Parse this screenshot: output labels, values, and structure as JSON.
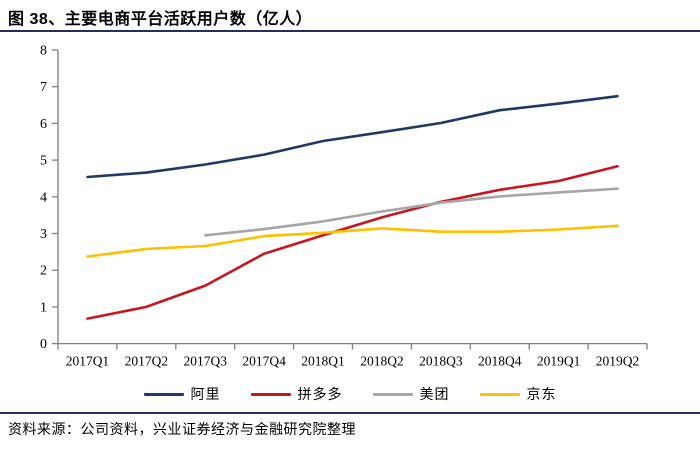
{
  "header": {
    "title": "图 38、主要电商平台活跃用户数（亿人）"
  },
  "footer": {
    "source": "资料来源：公司资料，兴业证券经济与金融研究院整理"
  },
  "colors": {
    "accent_rule": "#242D64",
    "axis": "#808080",
    "tick_text": "#000000"
  },
  "chart_data": {
    "type": "line",
    "title": "主要电商平台活跃用户数（亿人）",
    "unit": "亿人",
    "categories": [
      "2017Q1",
      "2017Q2",
      "2017Q3",
      "2017Q4",
      "2018Q1",
      "2018Q2",
      "2018Q3",
      "2018Q4",
      "2019Q1",
      "2019Q2"
    ],
    "series": [
      {
        "name": "阿里",
        "color": "#1F3864",
        "values": [
          4.54,
          4.66,
          4.88,
          5.15,
          5.52,
          5.76,
          6.01,
          6.36,
          6.54,
          6.74
        ]
      },
      {
        "name": "拼多多",
        "color": "#C8161E",
        "values": [
          0.68,
          1.0,
          1.58,
          2.45,
          2.95,
          3.44,
          3.86,
          4.19,
          4.43,
          4.83
        ]
      },
      {
        "name": "美团",
        "color": "#A6A6A6",
        "values": [
          null,
          null,
          2.95,
          3.12,
          3.33,
          3.6,
          3.84,
          4.01,
          4.12,
          4.22
        ]
      },
      {
        "name": "京东",
        "color": "#FFC000",
        "values": [
          2.37,
          2.58,
          2.66,
          2.93,
          3.02,
          3.14,
          3.05,
          3.05,
          3.11,
          3.21
        ]
      }
    ],
    "ylim": [
      0,
      8
    ],
    "ytick_step": 1,
    "grid": false,
    "legend_position": "bottom"
  }
}
